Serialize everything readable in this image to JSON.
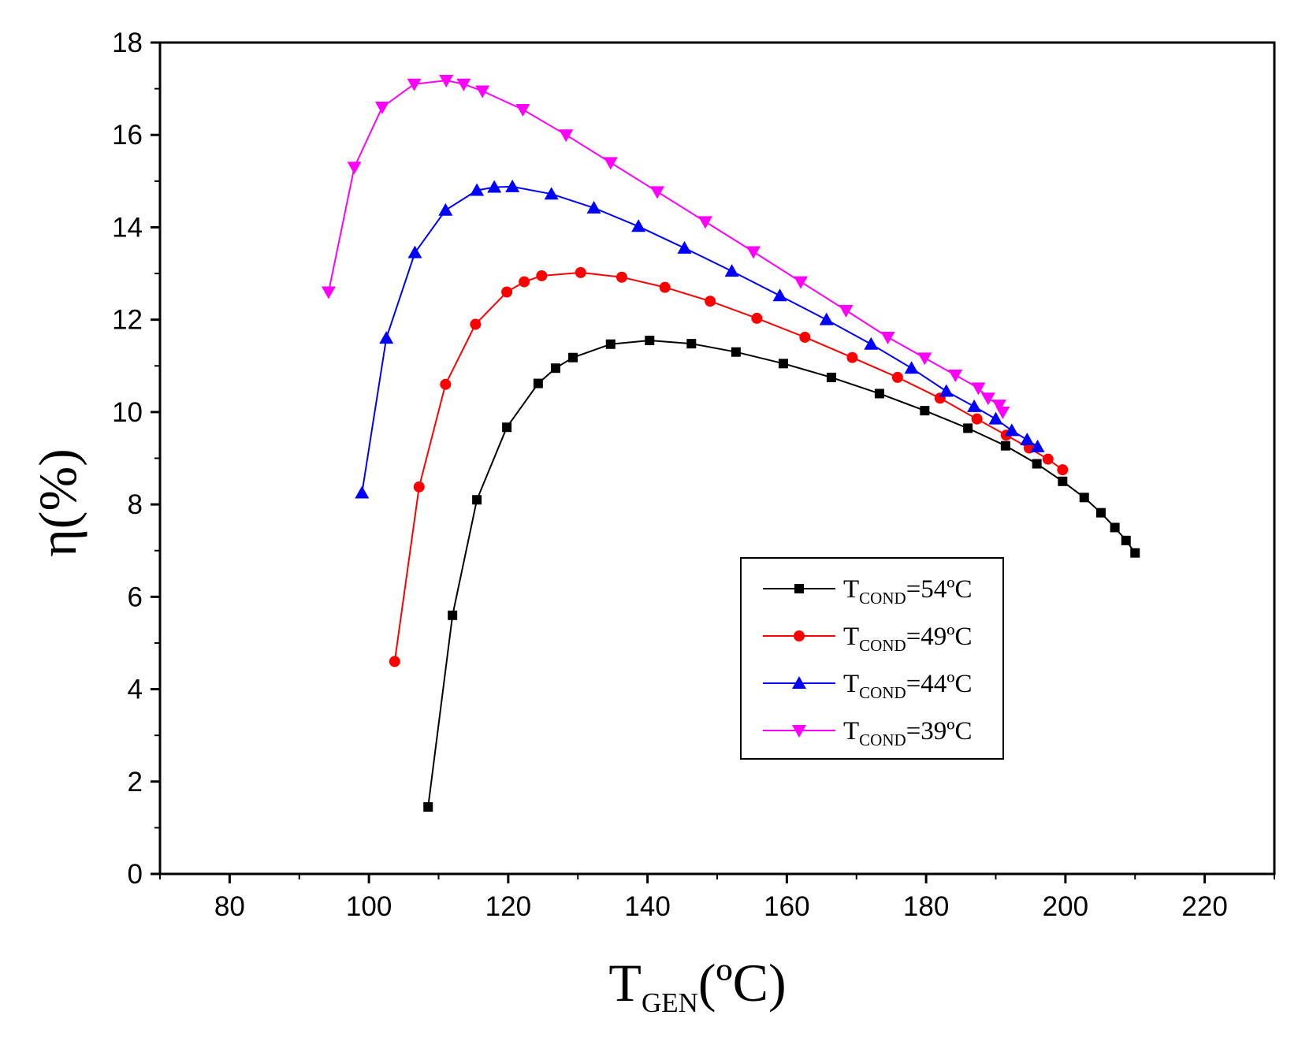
{
  "chart_data": {
    "type": "line",
    "title": "",
    "xlabel": {
      "main": "T",
      "sub": "GEN",
      "unit": "(ºC)"
    },
    "ylabel": {
      "main": "η",
      "unit": "(%)"
    },
    "xlim": [
      70,
      230
    ],
    "ylim": [
      0,
      18
    ],
    "xticks": [
      80,
      100,
      120,
      140,
      160,
      180,
      200,
      220
    ],
    "yticks": [
      0,
      2,
      4,
      6,
      8,
      10,
      12,
      14,
      16,
      18
    ],
    "grid": false,
    "legend_position": "lower-right",
    "series": [
      {
        "label_main": "T",
        "label_sub": "COND",
        "label_rest": "=54ºC",
        "color": "#000000",
        "marker": "square",
        "x": [
          108.5,
          112,
          115.5,
          119.8,
          124.3,
          126.8,
          129.3,
          134.7,
          140.3,
          146.3,
          152.7,
          159.5,
          166.4,
          173.3,
          179.8,
          186,
          191.4,
          195.9,
          199.6,
          202.7,
          205.1,
          207.1,
          208.7,
          210
        ],
        "y": [
          1.45,
          5.6,
          8.1,
          9.67,
          10.62,
          10.95,
          11.18,
          11.47,
          11.55,
          11.48,
          11.3,
          11.05,
          10.75,
          10.4,
          10.03,
          9.65,
          9.27,
          8.88,
          8.5,
          8.15,
          7.82,
          7.5,
          7.22,
          6.95
        ]
      },
      {
        "label_main": "T",
        "label_sub": "COND",
        "label_rest": "=49ºC",
        "color": "#ff0000",
        "marker": "circle",
        "x": [
          103.7,
          107.2,
          111,
          115.3,
          119.8,
          122.3,
          124.8,
          130.4,
          136.3,
          142.5,
          149,
          155.7,
          162.6,
          169.4,
          175.9,
          182,
          187.3,
          191.5,
          194.8,
          197.5,
          199.6
        ],
        "y": [
          4.6,
          8.38,
          10.6,
          11.9,
          12.6,
          12.82,
          12.95,
          13.02,
          12.92,
          12.7,
          12.4,
          12.03,
          11.62,
          11.18,
          10.75,
          10.3,
          9.85,
          9.5,
          9.22,
          8.98,
          8.75
        ]
      },
      {
        "label_main": "T",
        "label_sub": "COND",
        "label_rest": "=44ºC",
        "color": "#0000ff",
        "marker": "triangle-up",
        "x": [
          99,
          102.5,
          106.6,
          111,
          115.5,
          118,
          120.6,
          126.2,
          132.3,
          138.7,
          145.3,
          152.1,
          159,
          165.7,
          172.1,
          177.9,
          182.9,
          186.9,
          190,
          192.3,
          194.5,
          196
        ],
        "y": [
          8.25,
          11.6,
          13.45,
          14.37,
          14.8,
          14.87,
          14.88,
          14.72,
          14.42,
          14.02,
          13.55,
          13.05,
          12.52,
          12,
          11.47,
          10.95,
          10.45,
          10.12,
          9.85,
          9.6,
          9.4,
          9.25
        ]
      },
      {
        "label_main": "T",
        "label_sub": "COND",
        "label_rest": "=39ºC",
        "color": "#ff00ff",
        "marker": "triangle-down",
        "x": [
          94.2,
          97.9,
          101.9,
          106.5,
          111.1,
          113.6,
          116.3,
          122.1,
          128.3,
          134.7,
          141.4,
          148.3,
          155.2,
          162,
          168.5,
          174.5,
          179.8,
          184.2,
          187.5,
          188.9,
          190.5,
          191
        ],
        "y": [
          12.6,
          15.3,
          16.6,
          17.1,
          17.18,
          17.1,
          16.95,
          16.55,
          16,
          15.4,
          14.77,
          14.12,
          13.47,
          12.82,
          12.2,
          11.62,
          11.17,
          10.8,
          10.52,
          10.3,
          10.15,
          10
        ]
      }
    ]
  }
}
